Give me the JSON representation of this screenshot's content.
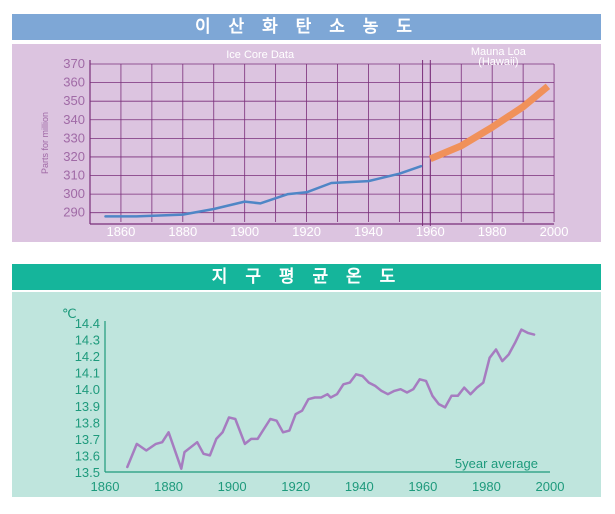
{
  "chart_data": [
    {
      "type": "line",
      "title": "이 산 화 탄 소 농 도",
      "ylabel": "Parts for million",
      "xlim": [
        1850,
        2010
      ],
      "ylim": [
        285,
        370
      ],
      "x_ticks": [
        1860,
        1880,
        1900,
        1920,
        1940,
        1960,
        1980,
        2000
      ],
      "y_ticks": [
        290,
        300,
        310,
        320,
        330,
        340,
        350,
        360,
        370
      ],
      "grid": true,
      "annotations": [
        "Ice  Core Data",
        "Mauna Loa",
        "(Hawaii)"
      ],
      "series": [
        {
          "name": "Ice  Core Data",
          "color": "#4f86c6",
          "x": [
            1855,
            1865,
            1880,
            1890,
            1900,
            1905,
            1914,
            1920,
            1928,
            1940,
            1950,
            1957
          ],
          "y": [
            288,
            288,
            289,
            292,
            296,
            295,
            300,
            301,
            306,
            307,
            311,
            315
          ]
        },
        {
          "name": "Mauna Loa (Hawaii)",
          "color": "#f0915a",
          "x": [
            1960,
            1970,
            1980,
            1990,
            1998
          ],
          "y": [
            319,
            326,
            336,
            347,
            358
          ]
        }
      ]
    },
    {
      "type": "line",
      "title": "지 구 평 균 온 도",
      "yunit": "℃",
      "xlim": [
        1860,
        2000
      ],
      "ylim": [
        13.5,
        14.4
      ],
      "x_ticks": [
        1860,
        1880,
        1900,
        1920,
        1940,
        1960,
        1980,
        2000
      ],
      "y_ticks": [
        13.5,
        13.6,
        13.7,
        13.8,
        13.9,
        14.0,
        14.1,
        14.2,
        14.3,
        14.4
      ],
      "annotation": "5year average",
      "series": [
        {
          "color": "#a67cc0",
          "x": [
            1867,
            1870,
            1873,
            1876,
            1878,
            1880,
            1884,
            1885,
            1887,
            1889,
            1891,
            1893,
            1895,
            1897,
            1899,
            1901,
            1904,
            1906,
            1908,
            1910,
            1912,
            1914,
            1916,
            1918,
            1920,
            1922,
            1924,
            1926,
            1928,
            1930,
            1931,
            1933,
            1935,
            1937,
            1939,
            1941,
            1943,
            1945,
            1947,
            1949,
            1951,
            1953,
            1955,
            1957,
            1959,
            1961,
            1963,
            1965,
            1967,
            1969,
            1971,
            1973,
            1975,
            1977,
            1979,
            1981,
            1983,
            1985,
            1987,
            1989,
            1991,
            1993,
            1995
          ],
          "y": [
            13.53,
            13.67,
            13.63,
            13.67,
            13.68,
            13.74,
            13.52,
            13.62,
            13.65,
            13.68,
            13.61,
            13.6,
            13.7,
            13.74,
            13.83,
            13.82,
            13.67,
            13.7,
            13.7,
            13.76,
            13.82,
            13.81,
            13.74,
            13.75,
            13.85,
            13.87,
            13.94,
            13.95,
            13.95,
            13.97,
            13.95,
            13.97,
            14.03,
            14.04,
            14.09,
            14.08,
            14.04,
            14.02,
            13.99,
            13.97,
            13.99,
            14.0,
            13.98,
            14.0,
            14.06,
            14.05,
            13.96,
            13.91,
            13.89,
            13.96,
            13.96,
            14.01,
            13.97,
            14.01,
            14.04,
            14.19,
            14.24,
            14.17,
            14.21,
            14.28,
            14.36,
            14.34,
            14.33
          ]
        }
      ]
    }
  ],
  "colors": {
    "co2_header": "#7ea7d6",
    "co2_panel": "#dcc4e0",
    "co2_grid": "#7a2e7a",
    "temp_header": "#15b59b",
    "temp_panel": "#bfe5dd",
    "temp_axis": "#1e9a7c"
  }
}
